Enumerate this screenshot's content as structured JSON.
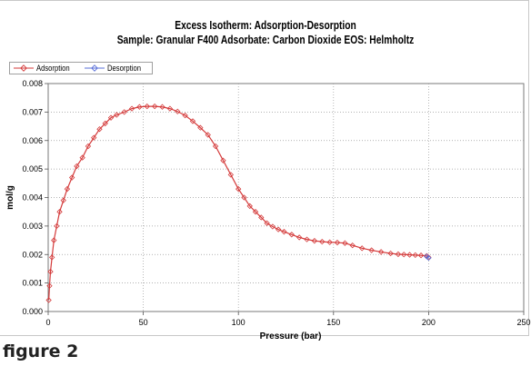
{
  "chart_data": {
    "type": "line",
    "title": "Excess Isotherm: Adsorption-Desorption",
    "subtitle": "Sample: Granular F400   Adsorbate: Carbon Dioxide   EOS: Helmholtz",
    "xlabel": "Pressure (bar)",
    "ylabel": "mol/g",
    "xlim": [
      0,
      250
    ],
    "ylim": [
      0,
      0.008
    ],
    "x_ticks": [
      "0",
      "50",
      "100",
      "150",
      "200",
      "250"
    ],
    "y_ticks": [
      "0.000",
      "0.001",
      "0.002",
      "0.003",
      "0.004",
      "0.005",
      "0.006",
      "0.007",
      "0.008"
    ],
    "grid": true,
    "legend_position": "top-left",
    "series": [
      {
        "name": "Adsorption",
        "color": "#d43a3a",
        "marker": "diamond",
        "x": [
          0.3,
          0.7,
          1.2,
          2,
          3,
          4.5,
          6,
          8,
          10,
          12.5,
          15,
          18,
          21,
          24,
          27,
          30,
          33,
          36,
          40,
          44,
          48,
          52,
          56,
          60,
          64,
          68,
          72,
          76,
          80,
          84,
          88,
          92,
          96,
          100,
          103,
          106,
          109,
          112,
          115,
          118,
          121,
          124,
          128,
          132,
          136,
          140,
          144,
          148,
          152,
          156,
          160,
          165,
          170,
          175,
          180,
          184,
          187,
          190,
          193,
          196,
          199,
          200
        ],
        "y": [
          0.0004,
          0.0009,
          0.0014,
          0.0019,
          0.0025,
          0.003,
          0.0035,
          0.0039,
          0.0043,
          0.0047,
          0.0051,
          0.0054,
          0.0058,
          0.0061,
          0.0064,
          0.0066,
          0.0068,
          0.0069,
          0.007,
          0.00712,
          0.00718,
          0.0072,
          0.0072,
          0.00718,
          0.00712,
          0.00702,
          0.00688,
          0.00668,
          0.00645,
          0.0062,
          0.0058,
          0.0053,
          0.0048,
          0.0043,
          0.004,
          0.0037,
          0.0035,
          0.0033,
          0.0031,
          0.00298,
          0.00288,
          0.0028,
          0.0027,
          0.0026,
          0.00253,
          0.00248,
          0.00245,
          0.00243,
          0.00242,
          0.0024,
          0.00232,
          0.00222,
          0.00215,
          0.00209,
          0.00204,
          0.00201,
          0.002,
          0.00199,
          0.00198,
          0.00197,
          0.00195,
          0.0019
        ]
      },
      {
        "name": "Desorption",
        "color": "#5a6fd8",
        "marker": "diamond",
        "x": [
          200,
          199
        ],
        "y": [
          0.00188,
          0.00193
        ]
      }
    ]
  },
  "caption": "figure 2"
}
